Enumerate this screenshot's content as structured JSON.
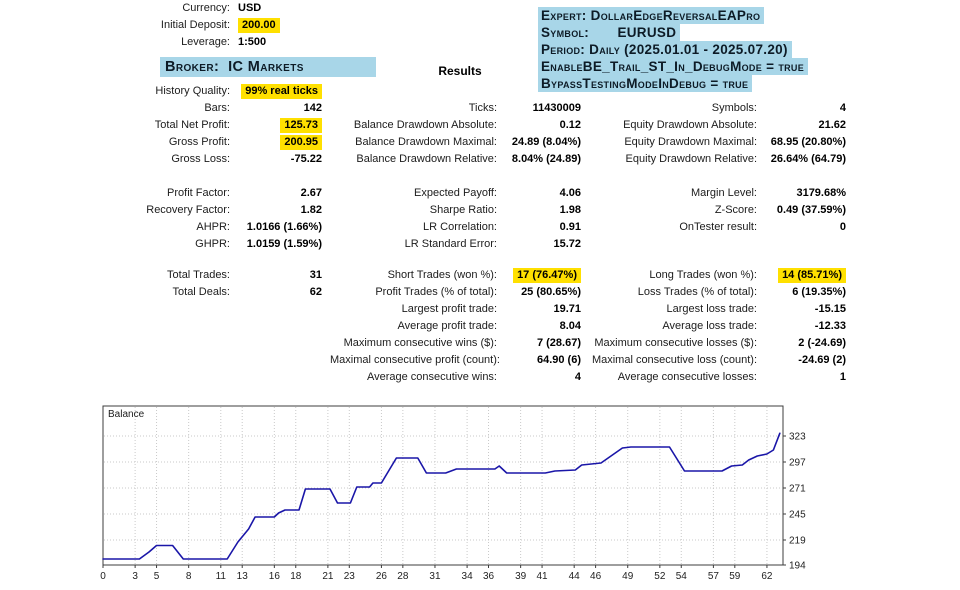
{
  "colors": {
    "yellow_highlight": "#ffe000",
    "blue_highlight": "#a8d6e8",
    "line_color": "#1a16a8",
    "grid_color": "#c9c9c9"
  },
  "account": {
    "rows": [
      {
        "label": "Currency:",
        "value": "USD",
        "highlight": false
      },
      {
        "label": "Initial Deposit:",
        "value": "200.00",
        "highlight": true
      },
      {
        "label": "Leverage:",
        "value": "1:500",
        "highlight": false
      }
    ]
  },
  "broker_heading": "Broker:  IC Markets",
  "results_heading": "Results",
  "expert_info": {
    "lines": [
      "Expert: DollarEdgeReversalEAPro",
      "Symbol:       EURUSD",
      "Period: Daily (2025.01.01 - 2025.07.20)",
      "EnableBE_Trail_ST_In_DebugMode = true",
      "BypassTestingModeInDebug = true"
    ]
  },
  "stats_blocks": [
    {
      "rows": [
        {
          "cells": [
            {
              "col": 1,
              "label": "History Quality:",
              "value": "99% real ticks",
              "hl": true
            }
          ]
        },
        {
          "cells": [
            {
              "col": 1,
              "label": "Bars:",
              "value": "142"
            },
            {
              "col": 2,
              "label": "Ticks:",
              "value": "11430009"
            },
            {
              "col": 3,
              "label": "Symbols:",
              "value": "4"
            }
          ]
        },
        {
          "cells": [
            {
              "col": 1,
              "label": "Total Net Profit:",
              "value": "125.73",
              "hl": true
            },
            {
              "col": 2,
              "label": "Balance Drawdown Absolute:",
              "value": "0.12"
            },
            {
              "col": 3,
              "label": "Equity Drawdown Absolute:",
              "value": "21.62"
            }
          ]
        },
        {
          "cells": [
            {
              "col": 1,
              "label": "Gross Profit:",
              "value": "200.95",
              "hl": true
            },
            {
              "col": 2,
              "label": "Balance Drawdown Maximal:",
              "value": "24.89 (8.04%)"
            },
            {
              "col": 3,
              "label": "Equity Drawdown Maximal:",
              "value": "68.95 (20.80%)"
            }
          ]
        },
        {
          "cells": [
            {
              "col": 1,
              "label": "Gross Loss:",
              "value": "-75.22"
            },
            {
              "col": 2,
              "label": "Balance Drawdown Relative:",
              "value": "8.04% (24.89)"
            },
            {
              "col": 3,
              "label": "Equity Drawdown Relative:",
              "value": "26.64% (64.79)"
            }
          ]
        }
      ]
    },
    {
      "rows": [
        {
          "cells": [
            {
              "col": 1,
              "label": "Profit Factor:",
              "value": "2.67"
            },
            {
              "col": 2,
              "label": "Expected Payoff:",
              "value": "4.06"
            },
            {
              "col": 3,
              "label": "Margin Level:",
              "value": "3179.68%"
            }
          ]
        },
        {
          "cells": [
            {
              "col": 1,
              "label": "Recovery Factor:",
              "value": "1.82"
            },
            {
              "col": 2,
              "label": "Sharpe Ratio:",
              "value": "1.98"
            },
            {
              "col": 3,
              "label": "Z-Score:",
              "value": "0.49 (37.59%)"
            }
          ]
        },
        {
          "cells": [
            {
              "col": 1,
              "label": "AHPR:",
              "value": "1.0166 (1.66%)"
            },
            {
              "col": 2,
              "label": "LR Correlation:",
              "value": "0.91"
            },
            {
              "col": 3,
              "label": "OnTester result:",
              "value": "0"
            }
          ]
        },
        {
          "cells": [
            {
              "col": 1,
              "label": "GHPR:",
              "value": "1.0159 (1.59%)"
            },
            {
              "col": 2,
              "label": "LR Standard Error:",
              "value": "15.72"
            }
          ]
        }
      ]
    },
    {
      "rows": [
        {
          "cells": [
            {
              "col": 1,
              "label": "Total Trades:",
              "value": "31"
            },
            {
              "col": 2,
              "label": "Short Trades (won %):",
              "value": "17 (76.47%)",
              "hl": true
            },
            {
              "col": 3,
              "label": "Long Trades (won %):",
              "value": "14 (85.71%)",
              "hl": true
            }
          ]
        },
        {
          "cells": [
            {
              "col": 1,
              "label": "Total Deals:",
              "value": "62"
            },
            {
              "col": 2,
              "label": "Profit Trades (% of total):",
              "value": "25 (80.65%)"
            },
            {
              "col": 3,
              "label": "Loss Trades (% of total):",
              "value": "6 (19.35%)"
            }
          ]
        },
        {
          "cells": [
            {
              "col": 2,
              "label": "Largest profit trade:",
              "value": "19.71"
            },
            {
              "col": 3,
              "label": "Largest loss trade:",
              "value": "-15.15"
            }
          ]
        },
        {
          "cells": [
            {
              "col": 2,
              "label": "Average profit trade:",
              "value": "8.04"
            },
            {
              "col": 3,
              "label": "Average loss trade:",
              "value": "-12.33"
            }
          ]
        },
        {
          "cells": [
            {
              "col": 2,
              "label": "Maximum consecutive wins ($):",
              "value": "7 (28.67)"
            },
            {
              "col": 3,
              "label": "Maximum consecutive losses ($):",
              "value": "2 (-24.69)"
            }
          ]
        },
        {
          "cells": [
            {
              "col": 2,
              "label": "Maximal consecutive profit (count):",
              "value": "64.90 (6)"
            },
            {
              "col": 3,
              "label": "Maximal consecutive loss (count):",
              "value": "-24.69 (2)"
            }
          ]
        },
        {
          "cells": [
            {
              "col": 2,
              "label": "Average consecutive wins:",
              "value": "4"
            },
            {
              "col": 3,
              "label": "Average consecutive losses:",
              "value": "1"
            }
          ]
        }
      ]
    }
  ],
  "chart_data": {
    "type": "line",
    "title": "Balance",
    "xlabel": "",
    "ylabel": "",
    "x_range": [
      0,
      63.5
    ],
    "y_range": [
      194,
      353
    ],
    "x_ticks": [
      0,
      3,
      5,
      8,
      11,
      13,
      16,
      18,
      21,
      23,
      26,
      28,
      31,
      34,
      36,
      39,
      41,
      44,
      46,
      49,
      52,
      54,
      57,
      59,
      62
    ],
    "y_ticks": [
      194,
      219,
      245,
      271,
      297,
      323
    ],
    "grid": "dotted",
    "legend_position": "top-left",
    "line_color": "#1a16a8",
    "series": [
      {
        "name": "Balance",
        "points": [
          [
            0,
            200
          ],
          [
            3.4,
            200
          ],
          [
            4.3,
            207
          ],
          [
            5,
            213.5
          ],
          [
            6.5,
            213.5
          ],
          [
            7.5,
            200
          ],
          [
            11.6,
            200
          ],
          [
            12.6,
            217
          ],
          [
            13.6,
            230
          ],
          [
            14.2,
            242
          ],
          [
            16,
            242
          ],
          [
            16.4,
            246
          ],
          [
            17,
            249
          ],
          [
            18.3,
            249
          ],
          [
            18.9,
            270
          ],
          [
            21.2,
            270
          ],
          [
            21.9,
            256
          ],
          [
            23.1,
            256
          ],
          [
            23.7,
            272
          ],
          [
            24.9,
            272
          ],
          [
            25.2,
            276
          ],
          [
            26,
            276
          ],
          [
            27.4,
            301
          ],
          [
            29.4,
            301
          ],
          [
            30.2,
            286
          ],
          [
            32,
            286
          ],
          [
            33,
            290
          ],
          [
            36.6,
            290
          ],
          [
            37,
            293
          ],
          [
            37.7,
            286
          ],
          [
            41.3,
            286
          ],
          [
            42.2,
            288
          ],
          [
            44.1,
            289
          ],
          [
            44.7,
            294
          ],
          [
            46.5,
            296
          ],
          [
            48.5,
            311
          ],
          [
            49.3,
            312
          ],
          [
            52.9,
            312
          ],
          [
            54.3,
            288
          ],
          [
            57.8,
            288
          ],
          [
            58.7,
            293
          ],
          [
            59.7,
            294
          ],
          [
            60.3,
            299
          ],
          [
            61.1,
            303
          ],
          [
            62,
            305
          ],
          [
            62.6,
            309
          ],
          [
            63.2,
            325.7
          ]
        ]
      }
    ]
  }
}
